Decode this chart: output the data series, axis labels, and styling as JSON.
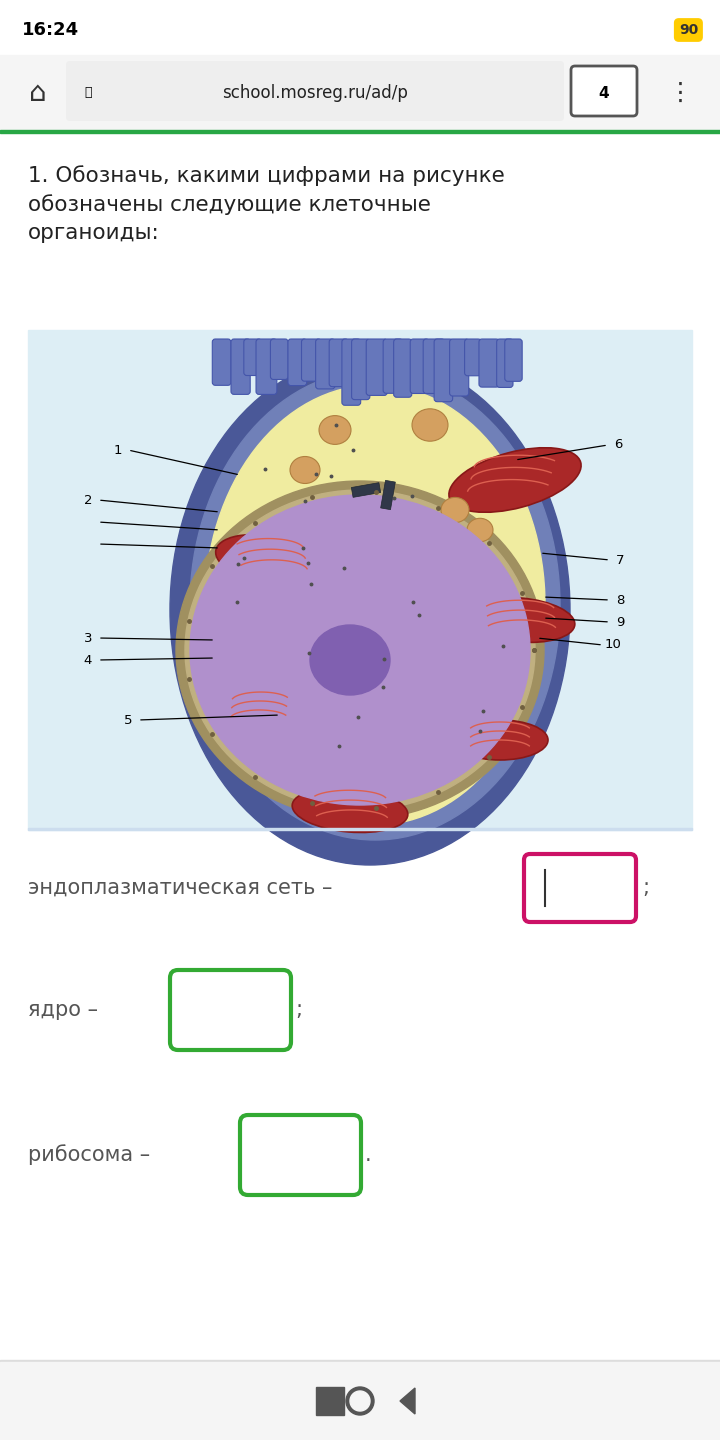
{
  "page_bg": "#ffffff",
  "status_bar_time": "16:24",
  "url": "school.mosreg.ru/ad/p",
  "tab_count": "4",
  "title_text": "1. Обозначь, какими цифрами на рисунке\nобозначены следующие клеточные\nорганоиды:",
  "title_fontsize": 15.5,
  "title_color": "#222222",
  "question_text_color": "#555555",
  "cell_bg": "#ddeef5",
  "cell_outer_color": "#4a5898",
  "cell_inner_color": "#f0eca0",
  "nucleus_color": "#b090cc",
  "nucleus_border": "#7050a0",
  "nucleolus_color": "#8060b0",
  "microvilli_color": "#5566aa",
  "mito_outer": "#aa3030",
  "mito_inner": "#cc6050",
  "er_color": "#b09060",
  "golgi_color": "#c8a055",
  "vesicle_color": "#d4a060",
  "label_fontsize": 10,
  "q1_label": "эндоплазматическая сеть –",
  "q2_label": "ядро –",
  "q3_label": "рибосома –",
  "box_pink": "#cc1166",
  "box_green": "#33aa33",
  "nav_bg": "#f5f5f5"
}
